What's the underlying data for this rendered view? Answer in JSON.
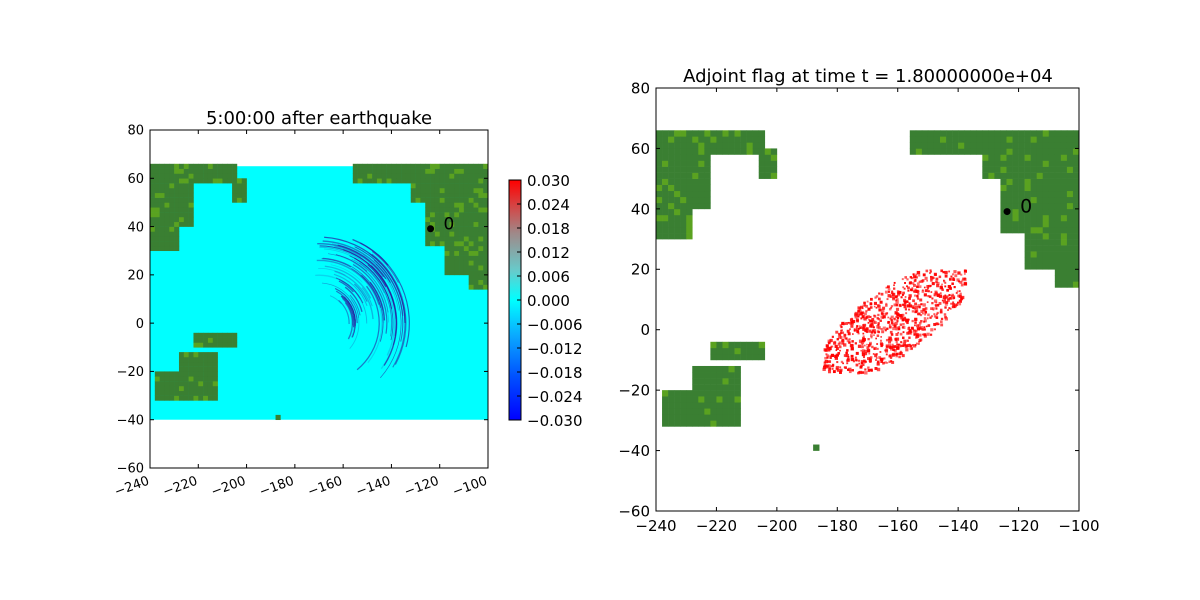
{
  "chart_data": [
    {
      "type": "heatmap",
      "title": "5:00:00 after earthquake",
      "xlim": [
        -240,
        -100
      ],
      "ylim": [
        -60,
        80
      ],
      "xticks": [
        -240,
        -220,
        -200,
        -180,
        -160,
        -140,
        -120,
        -100
      ],
      "yticks": [
        -60,
        -40,
        -20,
        0,
        20,
        40,
        60,
        80
      ],
      "xtick_labels": [
        "−240",
        "−220",
        "−200",
        "−180",
        "−160",
        "−140",
        "−120",
        "−100"
      ],
      "ytick_labels": [
        "−60",
        "−40",
        "−20",
        "0",
        "20",
        "40",
        "60",
        "80"
      ],
      "xtick_rotation_deg": 20,
      "domain_extent": {
        "x": [
          -240,
          -100
        ],
        "y": [
          -40,
          65
        ]
      },
      "ocean_color": "#00ffff",
      "land_colors": [
        "#3a7f32",
        "#5aa220"
      ],
      "wave_color": "#2a1a9e",
      "wave_front": {
        "center": [
          -170,
          0
        ],
        "outer_radius": 38,
        "visible_arc": "east-southeast"
      },
      "gauge": {
        "label": "0",
        "lon": -123.8,
        "lat": 39.1
      },
      "colorbar": {
        "min": -0.03,
        "max": 0.03,
        "ticks": [
          "0.030",
          "0.024",
          "0.018",
          "0.012",
          "0.006",
          "0.000",
          "−0.006",
          "−0.012",
          "−0.018",
          "−0.024",
          "−0.030"
        ],
        "colors": [
          "#0000ff",
          "#00ffff",
          "#ff0000"
        ]
      }
    },
    {
      "type": "heatmap",
      "title": "Adjoint flag at time t = 1.80000000e+04",
      "xlim": [
        -240,
        -100
      ],
      "ylim": [
        -60,
        80
      ],
      "xticks": [
        -240,
        -220,
        -200,
        -180,
        -160,
        -140,
        -120,
        -100
      ],
      "yticks": [
        -60,
        -40,
        -20,
        0,
        20,
        40,
        60,
        80
      ],
      "xtick_labels": [
        "−240",
        "−220",
        "−200",
        "−180",
        "−160",
        "−140",
        "−120",
        "−100"
      ],
      "ytick_labels": [
        "−60",
        "−40",
        "−20",
        "0",
        "20",
        "40",
        "60",
        "80"
      ],
      "land_colors": [
        "#3a7f32",
        "#5aa220"
      ],
      "flag_color": "#ff0000",
      "flag_region": {
        "lon": [
          -185,
          -138
        ],
        "lat": [
          -14,
          20
        ]
      },
      "gauge": {
        "label": "0",
        "lon": -123.8,
        "lat": 39.1
      }
    }
  ]
}
